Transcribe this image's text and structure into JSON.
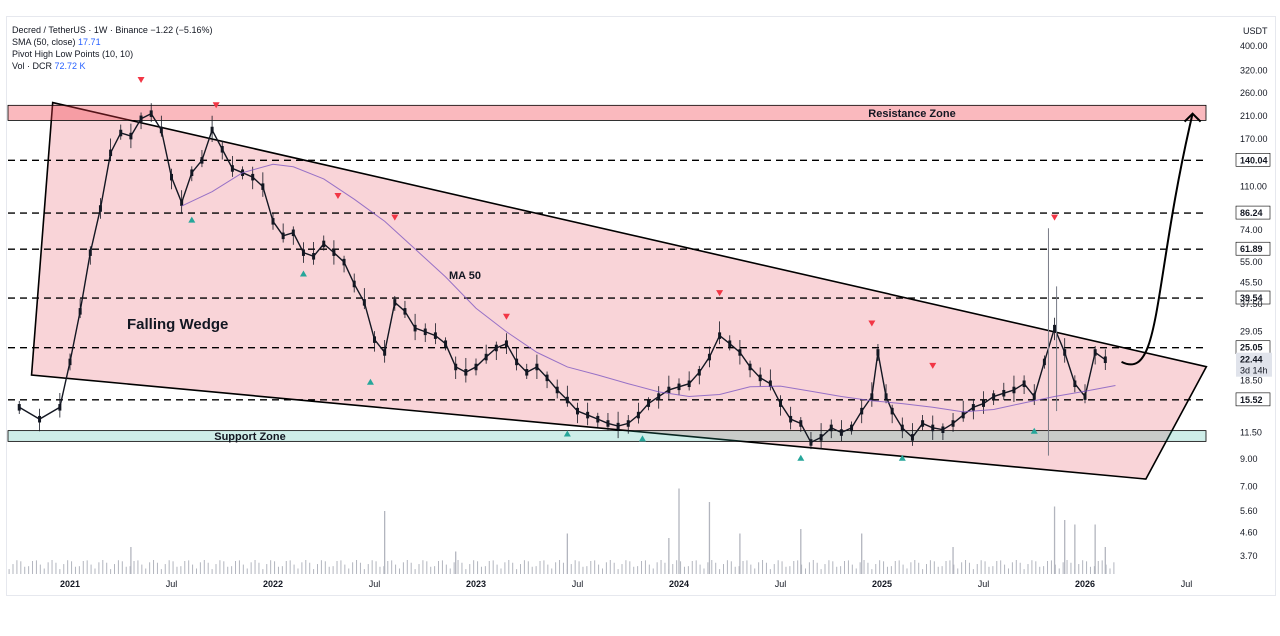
{
  "legend": {
    "symbol_line": "Decred / TetherUS · 1W · Binance",
    "change": "−1.22 (−5.16%)",
    "sma_label": "SMA (50, close)",
    "sma_value": "17.71",
    "pivot_label": "Pivot High Low Points (10, 10)",
    "vol_label": "Vol · DCR",
    "vol_value": "72.72 K"
  },
  "colors": {
    "zone_red": "#f23645",
    "zone_teal": "#22ab94",
    "wedge_fill": "#f7c6cb",
    "candle_up": "#131722",
    "ma_line": "#7e57c2",
    "arrow_red": "#f23645",
    "arrow_teal": "#26a69a"
  },
  "chart_data": {
    "type": "line",
    "title": "",
    "currency": "USDT",
    "y_scale": "log",
    "y_ticks": [
      "400.00",
      "320.00",
      "260.00",
      "210.00",
      "170.00",
      "140.04",
      "110.00",
      "86.24",
      "74.00",
      "61.89",
      "55.00",
      "45.50",
      "39.54",
      "37.50",
      "29.05",
      "25.05",
      "22.44",
      "18.50",
      "15.52",
      "11.50",
      "9.00",
      "7.00",
      "5.60",
      "4.60",
      "3.70"
    ],
    "x_ticks": [
      "2021",
      "Jul",
      "2022",
      "Jul",
      "2023",
      "Jul",
      "2024",
      "Jul",
      "2025",
      "Jul",
      "2026",
      "Jul"
    ],
    "bold_x_ticks": [
      "2021",
      "2022",
      "2023",
      "2024",
      "2025",
      "2026"
    ],
    "last_price": "22.44",
    "countdown": "3d 14h",
    "horizontal_levels": [
      140.04,
      86.24,
      61.89,
      39.54,
      25.05,
      15.52
    ],
    "zones": [
      {
        "name": "Resistance Zone",
        "low": 202,
        "high": 232
      },
      {
        "name": "Support Zone",
        "low": 10.6,
        "high": 11.7
      }
    ],
    "annotations": [
      "Falling Wedge",
      "MA 50"
    ],
    "wedge": {
      "upper": [
        [
          2020.9,
          238
        ],
        [
          2026.1,
          23.5
        ]
      ],
      "lower": [
        [
          2020.85,
          19.5
        ],
        [
          2026.3,
          7.5
        ]
      ],
      "right_edge": [
        [
          2026.46,
          23.5
        ],
        [
          2026.3,
          7.5
        ]
      ]
    },
    "projection": "upward curved arrow from ~22 to ~210 around mid-2026",
    "price_path": [
      [
        2020.75,
        14.5
      ],
      [
        2020.85,
        13.0
      ],
      [
        2020.95,
        14.5
      ],
      [
        2021.0,
        22
      ],
      [
        2021.05,
        35
      ],
      [
        2021.1,
        60
      ],
      [
        2021.15,
        90
      ],
      [
        2021.2,
        150
      ],
      [
        2021.25,
        180
      ],
      [
        2021.3,
        175
      ],
      [
        2021.35,
        205
      ],
      [
        2021.4,
        215
      ],
      [
        2021.45,
        185
      ],
      [
        2021.5,
        120
      ],
      [
        2021.55,
        95
      ],
      [
        2021.6,
        125
      ],
      [
        2021.65,
        140
      ],
      [
        2021.7,
        185
      ],
      [
        2021.75,
        155
      ],
      [
        2021.8,
        130
      ],
      [
        2021.85,
        125
      ],
      [
        2021.9,
        120
      ],
      [
        2021.95,
        110
      ],
      [
        2022.0,
        80
      ],
      [
        2022.05,
        70
      ],
      [
        2022.1,
        72
      ],
      [
        2022.15,
        60
      ],
      [
        2022.2,
        58
      ],
      [
        2022.25,
        65
      ],
      [
        2022.3,
        60
      ],
      [
        2022.35,
        55
      ],
      [
        2022.4,
        45
      ],
      [
        2022.45,
        38
      ],
      [
        2022.5,
        27
      ],
      [
        2022.55,
        24
      ],
      [
        2022.6,
        38
      ],
      [
        2022.65,
        35
      ],
      [
        2022.7,
        30
      ],
      [
        2022.75,
        29
      ],
      [
        2022.8,
        28
      ],
      [
        2022.85,
        26
      ],
      [
        2022.9,
        21
      ],
      [
        2022.95,
        20
      ],
      [
        2023.0,
        21
      ],
      [
        2023.05,
        23
      ],
      [
        2023.1,
        25
      ],
      [
        2023.15,
        26
      ],
      [
        2023.2,
        22
      ],
      [
        2023.25,
        20
      ],
      [
        2023.3,
        21
      ],
      [
        2023.35,
        19
      ],
      [
        2023.4,
        17
      ],
      [
        2023.45,
        15.5
      ],
      [
        2023.5,
        14
      ],
      [
        2023.55,
        13.5
      ],
      [
        2023.6,
        13
      ],
      [
        2023.65,
        12.5
      ],
      [
        2023.7,
        12.2
      ],
      [
        2023.75,
        12.5
      ],
      [
        2023.8,
        13.5
      ],
      [
        2023.85,
        15
      ],
      [
        2023.9,
        16
      ],
      [
        2023.95,
        17
      ],
      [
        2024.0,
        17.5
      ],
      [
        2024.05,
        18
      ],
      [
        2024.1,
        20
      ],
      [
        2024.15,
        23
      ],
      [
        2024.2,
        28
      ],
      [
        2024.25,
        26
      ],
      [
        2024.3,
        24
      ],
      [
        2024.35,
        21
      ],
      [
        2024.4,
        19
      ],
      [
        2024.45,
        18
      ],
      [
        2024.5,
        15
      ],
      [
        2024.55,
        13
      ],
      [
        2024.6,
        12.5
      ],
      [
        2024.65,
        10.5
      ],
      [
        2024.7,
        11
      ],
      [
        2024.75,
        12
      ],
      [
        2024.8,
        11.5
      ],
      [
        2024.85,
        12
      ],
      [
        2024.9,
        14
      ],
      [
        2024.95,
        16
      ],
      [
        2024.98,
        24
      ],
      [
        2025.02,
        16
      ],
      [
        2025.05,
        14
      ],
      [
        2025.1,
        12
      ],
      [
        2025.15,
        11
      ],
      [
        2025.2,
        12.5
      ],
      [
        2025.25,
        12
      ],
      [
        2025.3,
        11.8
      ],
      [
        2025.35,
        12.5
      ],
      [
        2025.4,
        13.5
      ],
      [
        2025.45,
        14.5
      ],
      [
        2025.5,
        15
      ],
      [
        2025.55,
        16
      ],
      [
        2025.6,
        16.5
      ],
      [
        2025.65,
        17
      ],
      [
        2025.7,
        18
      ],
      [
        2025.75,
        16
      ],
      [
        2025.8,
        22
      ],
      [
        2025.85,
        30
      ],
      [
        2025.9,
        24
      ],
      [
        2025.95,
        18
      ],
      [
        2026.0,
        16
      ],
      [
        2026.05,
        24
      ],
      [
        2026.1,
        22.44
      ]
    ],
    "ma50_path": [
      [
        2021.55,
        92
      ],
      [
        2021.7,
        105
      ],
      [
        2021.85,
        125
      ],
      [
        2022.0,
        135
      ],
      [
        2022.1,
        132
      ],
      [
        2022.25,
        118
      ],
      [
        2022.4,
        98
      ],
      [
        2022.55,
        80
      ],
      [
        2022.7,
        62
      ],
      [
        2022.85,
        48
      ],
      [
        2023.0,
        36
      ],
      [
        2023.15,
        29
      ],
      [
        2023.3,
        24
      ],
      [
        2023.45,
        21
      ],
      [
        2023.6,
        19.5
      ],
      [
        2023.75,
        18
      ],
      [
        2023.9,
        16.7
      ],
      [
        2024.05,
        16
      ],
      [
        2024.2,
        16.3
      ],
      [
        2024.35,
        17.5
      ],
      [
        2024.5,
        17.6
      ],
      [
        2024.65,
        16.8
      ],
      [
        2024.8,
        16.0
      ],
      [
        2024.95,
        15.4
      ],
      [
        2025.1,
        15.0
      ],
      [
        2025.25,
        14.5
      ],
      [
        2025.4,
        13.9
      ],
      [
        2025.55,
        14.2
      ],
      [
        2025.7,
        15.1
      ],
      [
        2025.85,
        16.0
      ],
      [
        2026.0,
        16.8
      ],
      [
        2026.15,
        17.71
      ]
    ],
    "pivot_highs": [
      [
        2021.35,
        290
      ],
      [
        2021.72,
        230
      ],
      [
        2022.32,
        100
      ],
      [
        2022.6,
        82
      ],
      [
        2023.15,
        33
      ],
      [
        2024.2,
        41
      ],
      [
        2024.95,
        31
      ],
      [
        2025.25,
        21
      ],
      [
        2025.85,
        82
      ]
    ],
    "pivot_lows": [
      [
        2021.6,
        82
      ],
      [
        2022.15,
        50
      ],
      [
        2022.48,
        18.5
      ],
      [
        2023.45,
        11.5
      ],
      [
        2023.82,
        11.0
      ],
      [
        2024.6,
        9.2
      ],
      [
        2025.1,
        9.2
      ],
      [
        2025.75,
        11.8
      ]
    ],
    "volume_spikes": [
      [
        2021.3,
        0.3
      ],
      [
        2022.55,
        0.7
      ],
      [
        2022.9,
        0.25
      ],
      [
        2023.45,
        0.45
      ],
      [
        2023.95,
        0.4
      ],
      [
        2024.0,
        0.95
      ],
      [
        2024.15,
        0.8
      ],
      [
        2024.3,
        0.45
      ],
      [
        2024.6,
        0.5
      ],
      [
        2024.9,
        0.45
      ],
      [
        2025.35,
        0.3
      ],
      [
        2025.85,
        0.75
      ],
      [
        2025.9,
        0.6
      ],
      [
        2025.95,
        0.55
      ],
      [
        2026.05,
        0.55
      ],
      [
        2026.1,
        0.3
      ]
    ]
  }
}
